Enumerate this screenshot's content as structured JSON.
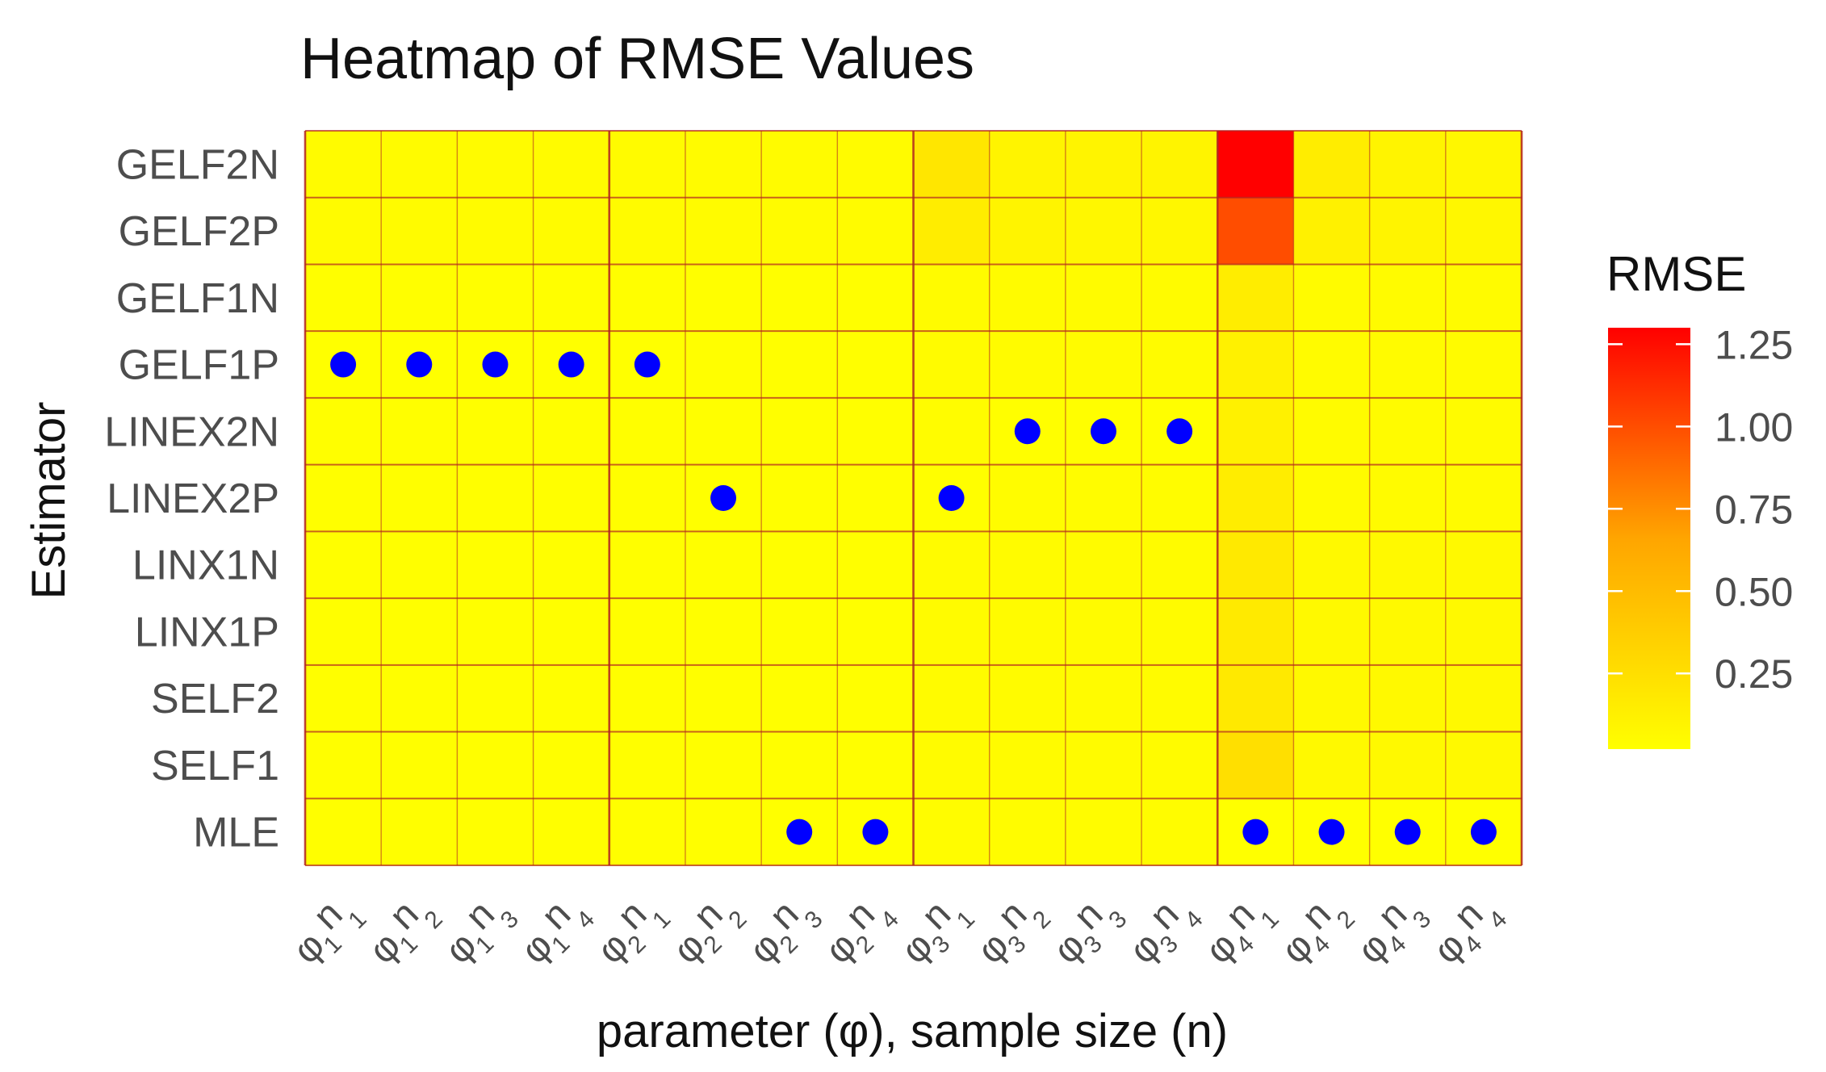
{
  "chart_data": {
    "type": "heatmap",
    "title": "Heatmap of RMSE Values",
    "xlabel": "parameter (φ), sample size (n)",
    "ylabel": "Estimator",
    "legend_title": "RMSE",
    "legend_position": "right",
    "legend_ticks": [
      "1.25",
      "1.00",
      "0.75",
      "0.50",
      "0.25"
    ],
    "legend_tick_values": [
      1.25,
      1.0,
      0.75,
      0.5,
      0.25
    ],
    "color_range": [
      0.02,
      1.3
    ],
    "color_low": "#ffff00",
    "color_mid": "#ffa500",
    "color_high": "#ff0000",
    "marker_color": "#0000ff",
    "grid_color": "#b22222",
    "x_categories": [
      {
        "phi": "1",
        "n": "1"
      },
      {
        "phi": "1",
        "n": "2"
      },
      {
        "phi": "1",
        "n": "3"
      },
      {
        "phi": "1",
        "n": "4"
      },
      {
        "phi": "2",
        "n": "1"
      },
      {
        "phi": "2",
        "n": "2"
      },
      {
        "phi": "2",
        "n": "3"
      },
      {
        "phi": "2",
        "n": "4"
      },
      {
        "phi": "3",
        "n": "1"
      },
      {
        "phi": "3",
        "n": "2"
      },
      {
        "phi": "3",
        "n": "3"
      },
      {
        "phi": "3",
        "n": "4"
      },
      {
        "phi": "4",
        "n": "1"
      },
      {
        "phi": "4",
        "n": "2"
      },
      {
        "phi": "4",
        "n": "3"
      },
      {
        "phi": "4",
        "n": "4"
      }
    ],
    "y_categories": [
      "GELF2N",
      "GELF2P",
      "GELF1N",
      "GELF1P",
      "LINEX2N",
      "LINEX2P",
      "LINX1N",
      "LINX1P",
      "SELF2",
      "SELF1",
      "MLE"
    ],
    "values": [
      [
        0.05,
        0.05,
        0.05,
        0.05,
        0.05,
        0.05,
        0.05,
        0.05,
        0.2,
        0.1,
        0.1,
        0.1,
        1.3,
        0.15,
        0.1,
        0.08
      ],
      [
        0.05,
        0.05,
        0.05,
        0.05,
        0.05,
        0.05,
        0.05,
        0.05,
        0.15,
        0.1,
        0.08,
        0.08,
        1.0,
        0.12,
        0.1,
        0.08
      ],
      [
        0.03,
        0.03,
        0.03,
        0.03,
        0.03,
        0.03,
        0.03,
        0.03,
        0.05,
        0.05,
        0.05,
        0.05,
        0.15,
        0.05,
        0.05,
        0.05
      ],
      [
        0.02,
        0.02,
        0.02,
        0.02,
        0.02,
        0.03,
        0.03,
        0.03,
        0.05,
        0.05,
        0.05,
        0.05,
        0.12,
        0.05,
        0.05,
        0.05
      ],
      [
        0.03,
        0.03,
        0.03,
        0.03,
        0.03,
        0.03,
        0.03,
        0.03,
        0.04,
        0.03,
        0.03,
        0.03,
        0.12,
        0.05,
        0.05,
        0.05
      ],
      [
        0.03,
        0.03,
        0.03,
        0.03,
        0.03,
        0.02,
        0.03,
        0.03,
        0.03,
        0.04,
        0.04,
        0.04,
        0.15,
        0.05,
        0.05,
        0.05
      ],
      [
        0.03,
        0.03,
        0.03,
        0.03,
        0.03,
        0.03,
        0.03,
        0.03,
        0.05,
        0.05,
        0.05,
        0.05,
        0.18,
        0.06,
        0.06,
        0.06
      ],
      [
        0.03,
        0.03,
        0.03,
        0.03,
        0.03,
        0.03,
        0.03,
        0.03,
        0.05,
        0.05,
        0.05,
        0.05,
        0.17,
        0.06,
        0.06,
        0.06
      ],
      [
        0.03,
        0.03,
        0.03,
        0.03,
        0.03,
        0.03,
        0.03,
        0.03,
        0.05,
        0.05,
        0.05,
        0.05,
        0.18,
        0.06,
        0.06,
        0.06
      ],
      [
        0.03,
        0.03,
        0.03,
        0.03,
        0.03,
        0.03,
        0.03,
        0.03,
        0.05,
        0.05,
        0.05,
        0.05,
        0.25,
        0.06,
        0.06,
        0.06
      ],
      [
        0.03,
        0.03,
        0.03,
        0.03,
        0.03,
        0.03,
        0.02,
        0.02,
        0.04,
        0.04,
        0.04,
        0.04,
        0.02,
        0.02,
        0.02,
        0.02
      ]
    ],
    "markers": [
      {
        "row": "GELF1P",
        "col": 0
      },
      {
        "row": "GELF1P",
        "col": 1
      },
      {
        "row": "GELF1P",
        "col": 2
      },
      {
        "row": "GELF1P",
        "col": 3
      },
      {
        "row": "GELF1P",
        "col": 4
      },
      {
        "row": "LINEX2N",
        "col": 9
      },
      {
        "row": "LINEX2N",
        "col": 10
      },
      {
        "row": "LINEX2N",
        "col": 11
      },
      {
        "row": "LINEX2P",
        "col": 5
      },
      {
        "row": "LINEX2P",
        "col": 8
      },
      {
        "row": "MLE",
        "col": 6
      },
      {
        "row": "MLE",
        "col": 7
      },
      {
        "row": "MLE",
        "col": 12
      },
      {
        "row": "MLE",
        "col": 13
      },
      {
        "row": "MLE",
        "col": 14
      },
      {
        "row": "MLE",
        "col": 15
      }
    ]
  }
}
